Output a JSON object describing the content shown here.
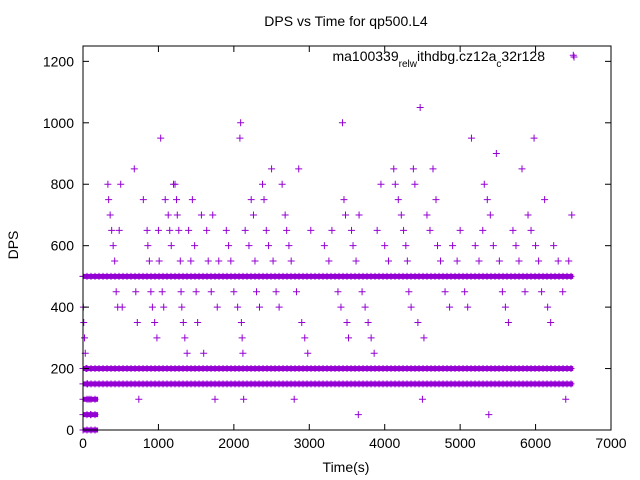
{
  "chart_data": {
    "type": "scatter",
    "title": "DPS vs Time for qp500.L4",
    "xlabel": "Time(s)",
    "ylabel": "DPS",
    "xlim": [
      0,
      7000
    ],
    "ylim": [
      0,
      1250
    ],
    "xticks": [
      0,
      1000,
      2000,
      3000,
      4000,
      5000,
      6000,
      7000
    ],
    "yticks": [
      0,
      200,
      400,
      600,
      800,
      1000,
      1200
    ],
    "grid": false,
    "legend_position": "top-right",
    "series_color": "#9400d3",
    "series": [
      {
        "name": "ma100339.rel_withdbg.cz12a_c32r128",
        "legend_parts": [
          {
            "t": "ma100339",
            "s": "base"
          },
          {
            "t": "rel",
            "s": "sub"
          },
          {
            "t": "w",
            "s": "sub"
          },
          {
            "t": "ithdbg.cz12a",
            "s": "base"
          },
          {
            "t": "c",
            "s": "sub"
          },
          {
            "t": "32r128",
            "s": "base"
          }
        ],
        "marker": "plus",
        "dense_bands": [
          {
            "y": 150,
            "x_start": 0,
            "x_end": 6500
          },
          {
            "y": 200,
            "x_start": 0,
            "x_end": 6500
          },
          {
            "y": 500,
            "x_start": 0,
            "x_end": 6500
          },
          {
            "y": 0,
            "x_start": 0,
            "x_end": 200
          },
          {
            "y": 50,
            "x_start": 0,
            "x_end": 200
          },
          {
            "y": 100,
            "x_start": 0,
            "x_end": 200
          }
        ],
        "points": [
          [
            1,
            500
          ],
          [
            5,
            400
          ],
          [
            10,
            350
          ],
          [
            20,
            300
          ],
          [
            30,
            250
          ],
          [
            40,
            200
          ],
          [
            60,
            150
          ],
          [
            80,
            100
          ],
          [
            100,
            50
          ],
          [
            330,
            800
          ],
          [
            340,
            750
          ],
          [
            360,
            700
          ],
          [
            380,
            650
          ],
          [
            400,
            600
          ],
          [
            420,
            550
          ],
          [
            440,
            450
          ],
          [
            460,
            400
          ],
          [
            480,
            650
          ],
          [
            500,
            800
          ],
          [
            520,
            400
          ],
          [
            680,
            850
          ],
          [
            700,
            450
          ],
          [
            720,
            350
          ],
          [
            740,
            100
          ],
          [
            800,
            750
          ],
          [
            850,
            650
          ],
          [
            860,
            600
          ],
          [
            880,
            550
          ],
          [
            900,
            450
          ],
          [
            920,
            400
          ],
          [
            950,
            350
          ],
          [
            980,
            300
          ],
          [
            1000,
            650
          ],
          [
            1010,
            550
          ],
          [
            1030,
            950
          ],
          [
            1050,
            450
          ],
          [
            1070,
            400
          ],
          [
            1090,
            750
          ],
          [
            1130,
            700
          ],
          [
            1150,
            650
          ],
          [
            1170,
            600
          ],
          [
            1200,
            800
          ],
          [
            1220,
            800
          ],
          [
            1240,
            750
          ],
          [
            1250,
            700
          ],
          [
            1270,
            650
          ],
          [
            1290,
            550
          ],
          [
            1300,
            450
          ],
          [
            1310,
            400
          ],
          [
            1330,
            350
          ],
          [
            1350,
            300
          ],
          [
            1380,
            250
          ],
          [
            1400,
            650
          ],
          [
            1430,
            550
          ],
          [
            1450,
            750
          ],
          [
            1480,
            600
          ],
          [
            1500,
            450
          ],
          [
            1520,
            350
          ],
          [
            1570,
            700
          ],
          [
            1600,
            250
          ],
          [
            1640,
            650
          ],
          [
            1660,
            550
          ],
          [
            1700,
            450
          ],
          [
            1720,
            700
          ],
          [
            1750,
            100
          ],
          [
            1780,
            400
          ],
          [
            1800,
            550
          ],
          [
            1900,
            650
          ],
          [
            1930,
            600
          ],
          [
            1960,
            550
          ],
          [
            2000,
            450
          ],
          [
            2050,
            400
          ],
          [
            2080,
            950
          ],
          [
            2090,
            1000
          ],
          [
            2100,
            350
          ],
          [
            2110,
            300
          ],
          [
            2120,
            250
          ],
          [
            2130,
            100
          ],
          [
            2150,
            650
          ],
          [
            2200,
            600
          ],
          [
            2230,
            750
          ],
          [
            2260,
            700
          ],
          [
            2280,
            550
          ],
          [
            2300,
            450
          ],
          [
            2340,
            400
          ],
          [
            2380,
            800
          ],
          [
            2400,
            750
          ],
          [
            2430,
            650
          ],
          [
            2460,
            600
          ],
          [
            2500,
            850
          ],
          [
            2520,
            550
          ],
          [
            2560,
            450
          ],
          [
            2600,
            400
          ],
          [
            2640,
            800
          ],
          [
            2680,
            700
          ],
          [
            2700,
            650
          ],
          [
            2730,
            600
          ],
          [
            2760,
            550
          ],
          [
            2800,
            100
          ],
          [
            2830,
            450
          ],
          [
            2860,
            850
          ],
          [
            2900,
            350
          ],
          [
            2940,
            300
          ],
          [
            2980,
            250
          ],
          [
            3020,
            650
          ],
          [
            3200,
            600
          ],
          [
            3260,
            550
          ],
          [
            3300,
            650
          ],
          [
            3380,
            450
          ],
          [
            3420,
            400
          ],
          [
            3440,
            1000
          ],
          [
            3460,
            750
          ],
          [
            3480,
            700
          ],
          [
            3500,
            350
          ],
          [
            3520,
            300
          ],
          [
            3560,
            650
          ],
          [
            3580,
            600
          ],
          [
            3620,
            550
          ],
          [
            3650,
            50
          ],
          [
            3660,
            700
          ],
          [
            3700,
            450
          ],
          [
            3740,
            400
          ],
          [
            3780,
            350
          ],
          [
            3820,
            300
          ],
          [
            3860,
            250
          ],
          [
            3900,
            650
          ],
          [
            3950,
            800
          ],
          [
            4000,
            600
          ],
          [
            4050,
            550
          ],
          [
            4120,
            850
          ],
          [
            4140,
            800
          ],
          [
            4180,
            750
          ],
          [
            4220,
            700
          ],
          [
            4250,
            650
          ],
          [
            4280,
            600
          ],
          [
            4300,
            550
          ],
          [
            4320,
            450
          ],
          [
            4350,
            400
          ],
          [
            4380,
            850
          ],
          [
            4400,
            800
          ],
          [
            4440,
            350
          ],
          [
            4470,
            1050
          ],
          [
            4500,
            100
          ],
          [
            4520,
            300
          ],
          [
            4560,
            700
          ],
          [
            4600,
            650
          ],
          [
            4640,
            850
          ],
          [
            4680,
            750
          ],
          [
            4700,
            600
          ],
          [
            4740,
            550
          ],
          [
            4800,
            450
          ],
          [
            4860,
            400
          ],
          [
            4900,
            600
          ],
          [
            4960,
            550
          ],
          [
            5000,
            650
          ],
          [
            5060,
            450
          ],
          [
            5100,
            400
          ],
          [
            5150,
            950
          ],
          [
            5200,
            600
          ],
          [
            5250,
            550
          ],
          [
            5300,
            650
          ],
          [
            5320,
            800
          ],
          [
            5360,
            750
          ],
          [
            5380,
            50
          ],
          [
            5400,
            700
          ],
          [
            5440,
            600
          ],
          [
            5480,
            900
          ],
          [
            5520,
            550
          ],
          [
            5560,
            450
          ],
          [
            5600,
            400
          ],
          [
            5640,
            350
          ],
          [
            5700,
            650
          ],
          [
            5740,
            600
          ],
          [
            5780,
            550
          ],
          [
            5820,
            850
          ],
          [
            5860,
            450
          ],
          [
            5900,
            700
          ],
          [
            5940,
            650
          ],
          [
            5980,
            950
          ],
          [
            6000,
            600
          ],
          [
            6040,
            550
          ],
          [
            6080,
            450
          ],
          [
            6120,
            750
          ],
          [
            6160,
            400
          ],
          [
            6200,
            350
          ],
          [
            6240,
            600
          ],
          [
            6300,
            550
          ],
          [
            6360,
            450
          ],
          [
            6400,
            100
          ],
          [
            6440,
            550
          ],
          [
            6480,
            700
          ],
          [
            6500,
            1220
          ]
        ]
      }
    ]
  }
}
